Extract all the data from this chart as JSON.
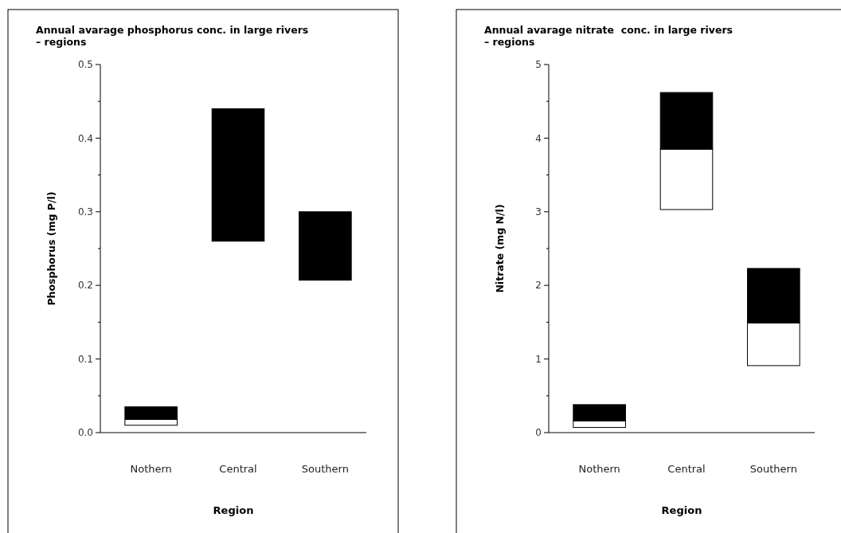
{
  "chart_data": [
    {
      "type": "bar",
      "title": "Annual avarage phosphorus conc. in large rivers\n– regions",
      "xlabel": "Region",
      "ylabel": "Phosphorus (mg P/l)",
      "categories": [
        "Nothern",
        "Central",
        "Southern"
      ],
      "series": [
        {
          "color": "#ffffff",
          "base": [
            0.01,
            null,
            null
          ],
          "values": [
            0.008,
            null,
            null
          ]
        },
        {
          "color": "#000000",
          "base": [
            0.018,
            0.26,
            0.207
          ],
          "values": [
            0.017,
            0.18,
            0.093
          ]
        }
      ],
      "ylim": [
        0,
        0.5
      ],
      "yticks": [
        {
          "value": 0,
          "label": "0.0"
        },
        {
          "value": 0.05,
          "label": null
        },
        {
          "value": 0.1,
          "label": "0.1"
        },
        {
          "value": 0.15,
          "label": null
        },
        {
          "value": 0.2,
          "label": "0.2"
        },
        {
          "value": 0.25,
          "label": null
        },
        {
          "value": 0.3,
          "label": "0.3"
        },
        {
          "value": 0.35,
          "label": null
        },
        {
          "value": 0.4,
          "label": "0.4"
        },
        {
          "value": 0.45,
          "label": null
        },
        {
          "value": 0.5,
          "label": "0.5"
        }
      ]
    },
    {
      "type": "bar",
      "title": "Annual avarage nitrate  conc. in large rivers\n– regions",
      "xlabel": "Region",
      "ylabel": "Nitrate (mg N/l)",
      "categories": [
        "Nothern",
        "Central",
        "Southern"
      ],
      "series": [
        {
          "color": "#ffffff",
          "base": [
            0.07,
            3.03,
            0.91
          ],
          "values": [
            0.09,
            0.82,
            0.58
          ]
        },
        {
          "color": "#000000",
          "base": [
            0.16,
            3.85,
            1.49
          ],
          "values": [
            0.22,
            0.77,
            0.74
          ]
        }
      ],
      "ylim": [
        0,
        5
      ],
      "yticks": [
        0,
        {
          "value": 0.5,
          "label": null
        },
        1,
        {
          "value": 1.5,
          "label": null
        },
        2,
        {
          "value": 2.5,
          "label": null
        },
        3,
        {
          "value": 3.5,
          "label": null
        },
        4,
        {
          "value": 4.5,
          "label": null
        },
        5
      ]
    }
  ]
}
